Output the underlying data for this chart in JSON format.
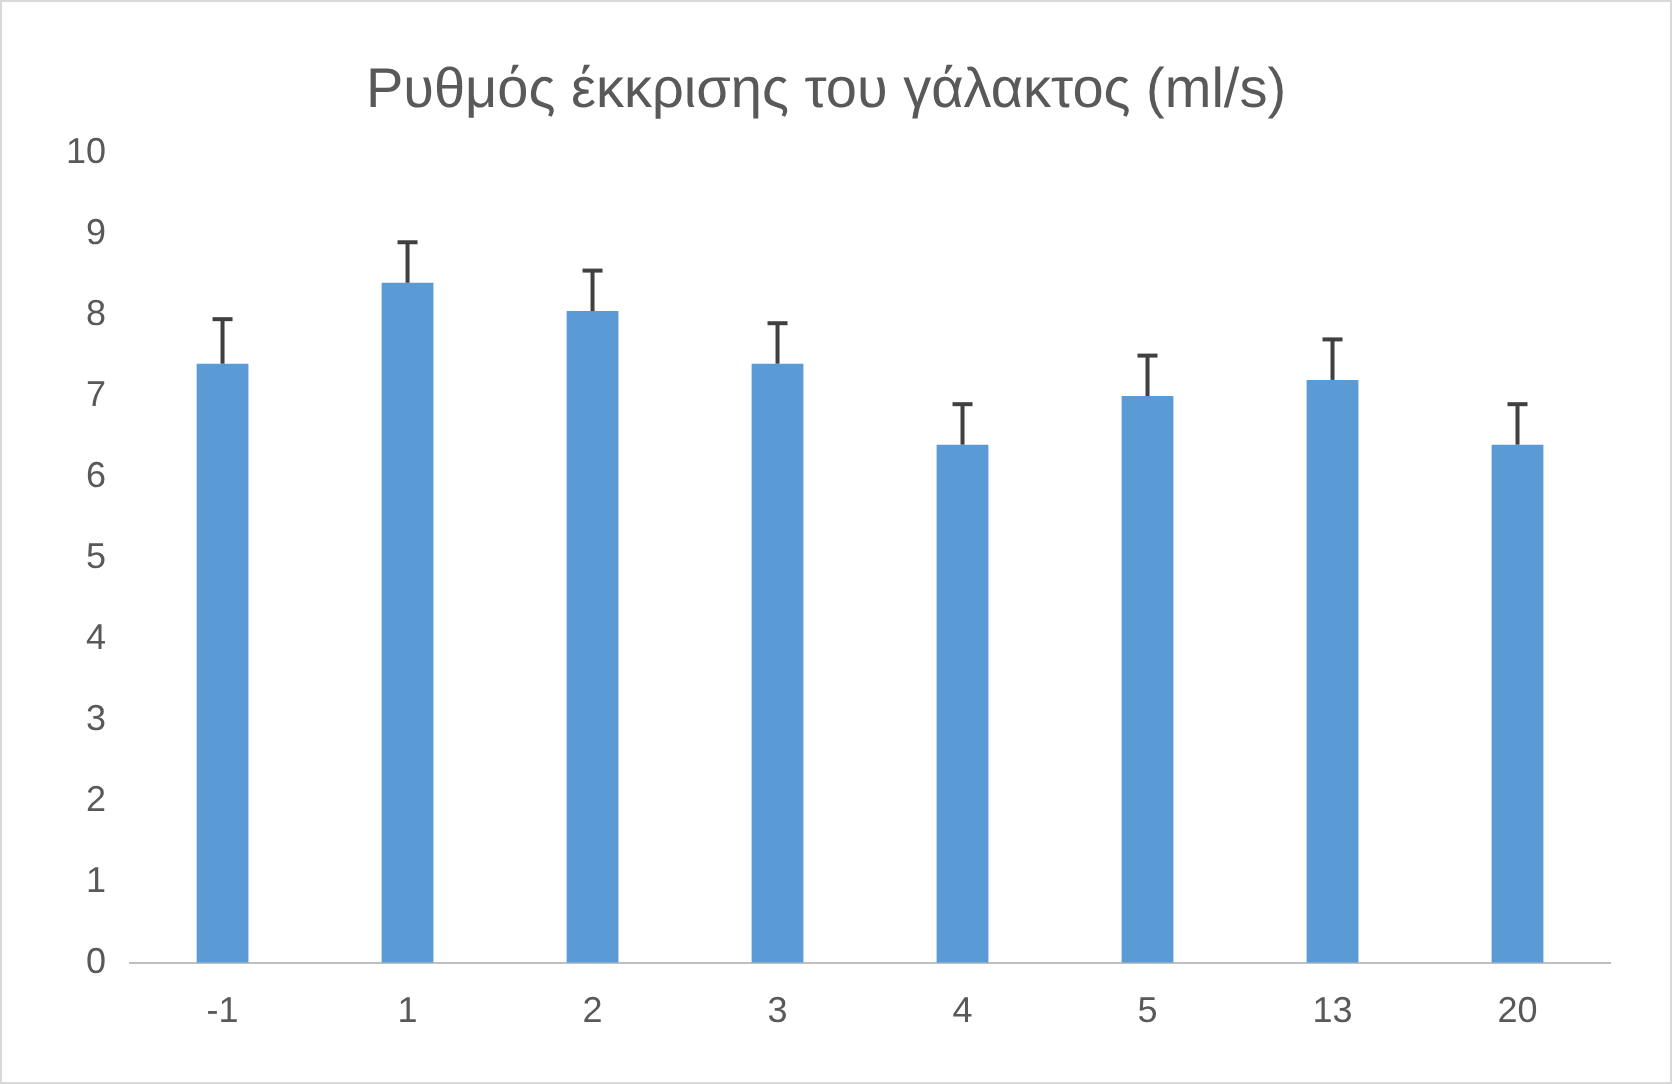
{
  "chart_data": {
    "type": "bar",
    "title": "Ρυθμός έκκρισης του γάλακτος (ml/s)",
    "categories": [
      "-1",
      "1",
      "2",
      "3",
      "4",
      "5",
      "13",
      "20"
    ],
    "values": [
      7.4,
      8.4,
      8.05,
      7.4,
      6.4,
      7.0,
      7.2,
      6.4
    ],
    "errors": [
      [
        7.4,
        7.95
      ],
      [
        8.4,
        8.9
      ],
      [
        8.05,
        8.55
      ],
      [
        7.4,
        7.9
      ],
      [
        6.4,
        6.9
      ],
      [
        7.0,
        7.5
      ],
      [
        7.2,
        7.7
      ],
      [
        6.4,
        6.9
      ]
    ],
    "color": "#5b9bd5",
    "ylim": [
      0,
      10
    ],
    "yticks": [
      0,
      1,
      2,
      3,
      4,
      5,
      6,
      7,
      8,
      9,
      10
    ],
    "grid": false,
    "legend": false
  }
}
